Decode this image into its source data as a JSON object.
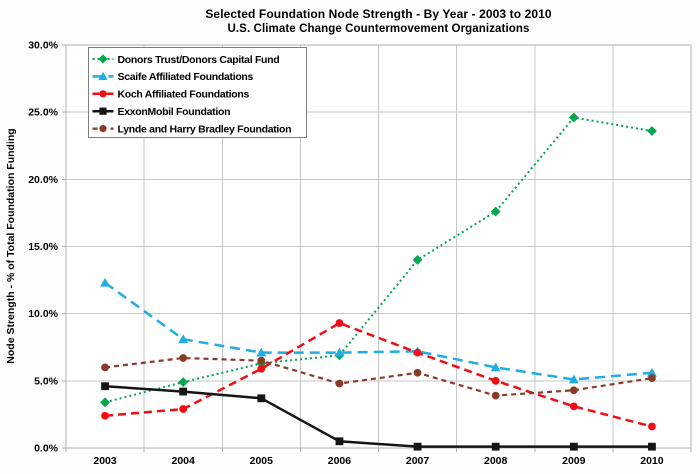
{
  "title": "Selected Foundation Node Strength - By Year - 2003 to 2010",
  "subtitle": "U.S. Climate Change Countermovement Organizations",
  "chart_data": {
    "type": "line",
    "x": [
      "2003",
      "2004",
      "2005",
      "2006",
      "2007",
      "2008",
      "2009",
      "2010"
    ],
    "xlabel": "",
    "ylabel": "Node Strength  - % of Total Foundation Funding",
    "ylim": [
      0,
      30
    ],
    "ytick_step": 5,
    "ytick_labels": [
      "0.0%",
      "5.0%",
      "10.0%",
      "15.0%",
      "20.0%",
      "25.0%",
      "30.0%"
    ],
    "grid": true,
    "legend_position": "top-left",
    "plot_colors": {
      "background": "#ffffff",
      "gridline": "#c6c6c6",
      "border": "#b0b0b0",
      "legend_border": "#7f7f7f"
    },
    "series": [
      {
        "name": "Donors Trust/Donors Capital Fund",
        "color": "#00A84F",
        "line_style": "dotted",
        "dash": "2 3",
        "line_width": 2,
        "marker": "diamond",
        "values": [
          3.4,
          4.9,
          6.3,
          6.9,
          14.0,
          17.6,
          24.6,
          23.6
        ]
      },
      {
        "name": "Scaife Affiliated Foundations",
        "color": "#1FADE4",
        "line_style": "dashed",
        "dash": "10 6",
        "line_width": 2.5,
        "marker": "triangle",
        "values": [
          12.3,
          8.1,
          7.1,
          7.1,
          7.2,
          6.0,
          5.1,
          5.6
        ]
      },
      {
        "name": "Koch Affiliated Foundations",
        "color": "#F20D14",
        "line_style": "dashed",
        "dash": "8 5",
        "line_width": 2.5,
        "marker": "circle",
        "values": [
          2.4,
          2.9,
          5.9,
          9.3,
          7.1,
          5.0,
          3.1,
          1.6
        ]
      },
      {
        "name": "ExxonMobil Foundation",
        "color": "#151515",
        "line_style": "solid",
        "dash": "",
        "line_width": 2.5,
        "marker": "square",
        "values": [
          4.6,
          4.2,
          3.7,
          0.5,
          0.1,
          0.1,
          0.1,
          0.1
        ]
      },
      {
        "name": "Lynde and Harry Bradley Foundation",
        "color": "#8B3A2A",
        "line_style": "dashed",
        "dash": "5 4",
        "line_width": 2.2,
        "marker": "circle",
        "values": [
          6.0,
          6.7,
          6.5,
          4.8,
          5.6,
          3.9,
          4.3,
          5.2
        ]
      }
    ]
  }
}
